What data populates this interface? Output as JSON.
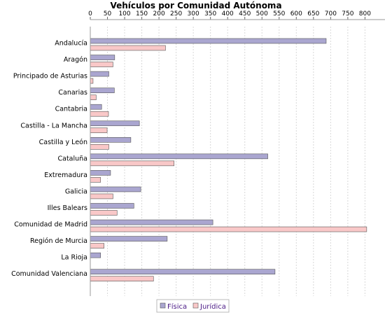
{
  "chart_data": {
    "type": "bar",
    "orientation": "horizontal",
    "title": "Vehículos por Comunidad Autónoma",
    "xlabel": "",
    "ylabel": "",
    "xlim": [
      0,
      860
    ],
    "ticks": [
      "0",
      "50",
      "100",
      "150",
      "200",
      "250",
      "300",
      "350",
      "400",
      "450",
      "500",
      "550",
      "600",
      "650",
      "700",
      "750",
      "800"
    ],
    "tick_values": [
      0,
      50,
      100,
      150,
      200,
      250,
      300,
      350,
      400,
      450,
      500,
      550,
      600,
      650,
      700,
      750,
      800
    ],
    "axis_position": "top",
    "grid": true,
    "legend_position": "bottom",
    "categories": [
      "Andalucía",
      "Aragón",
      "Principado de Asturias",
      "Canarias",
      "Cantabria",
      "Castilla - La Mancha",
      "Castilla y León",
      "Cataluña",
      "Extremadura",
      "Galicia",
      "Illes Balears",
      "Comunidad de Madrid",
      "Región de Murcia",
      "La Rioja",
      "Comunidad Valenciana"
    ],
    "series": [
      {
        "name": "Física",
        "color": "#aaa6d0",
        "values": [
          687,
          71,
          54,
          70,
          33,
          143,
          118,
          517,
          59,
          147,
          127,
          357,
          224,
          30,
          538
        ]
      },
      {
        "name": "Jurídica",
        "color": "#f9c8c8",
        "values": [
          219,
          66,
          8,
          17,
          53,
          49,
          54,
          244,
          30,
          66,
          78,
          805,
          40,
          0,
          184
        ]
      }
    ]
  }
}
